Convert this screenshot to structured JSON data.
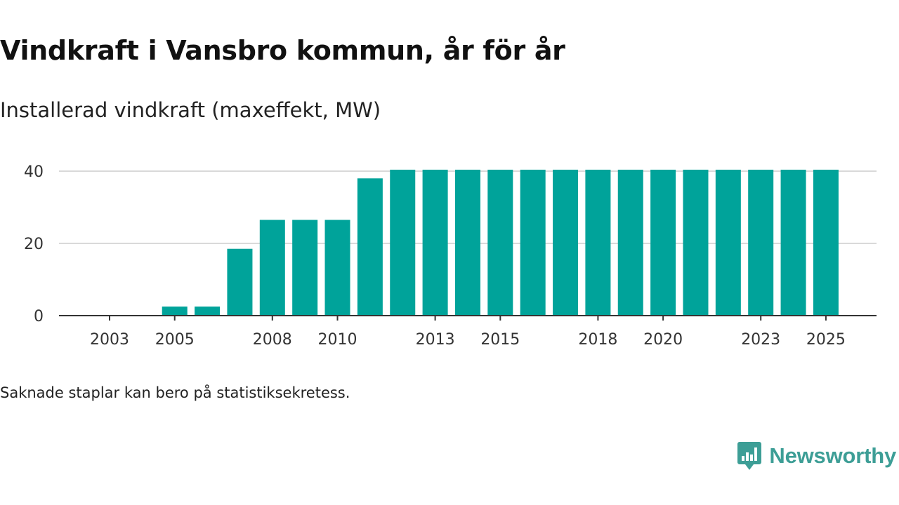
{
  "header": {
    "title": "Vindkraft i Vansbro kommun, år för år",
    "subtitle": "Installerad vindkraft (maxeffekt, MW)"
  },
  "footer": {
    "note": "Saknade staplar kan bero på statistiksekretess.",
    "brand": "Newsworthy"
  },
  "colors": {
    "bar": "#00a39a",
    "grid": "#d9d9d9",
    "axis": "#333333",
    "brand": "#3d9e96"
  },
  "chart_data": {
    "type": "bar",
    "title": "Vindkraft i Vansbro kommun, år för år",
    "subtitle": "Installerad vindkraft (maxeffekt, MW)",
    "xlabel": "",
    "ylabel": "",
    "categories": [
      "2003",
      "2004",
      "2005",
      "2006",
      "2007",
      "2008",
      "2009",
      "2010",
      "2011",
      "2012",
      "2013",
      "2014",
      "2015",
      "2016",
      "2017",
      "2018",
      "2019",
      "2020",
      "2021",
      "2022",
      "2023",
      "2024",
      "2025"
    ],
    "values": [
      0,
      0,
      2.5,
      2.5,
      18.5,
      26.5,
      26.5,
      26.5,
      38,
      40.4,
      40.4,
      40.4,
      40.4,
      40.4,
      40.4,
      40.4,
      40.4,
      40.4,
      40.4,
      40.4,
      40.4,
      40.4,
      40.4
    ],
    "ylim": [
      0,
      40
    ],
    "yticks": [
      0,
      20,
      40
    ],
    "xtick_labels": [
      "2003",
      "2005",
      "2008",
      "2010",
      "2013",
      "2015",
      "2018",
      "2020",
      "2023",
      "2025"
    ],
    "grid": true
  }
}
